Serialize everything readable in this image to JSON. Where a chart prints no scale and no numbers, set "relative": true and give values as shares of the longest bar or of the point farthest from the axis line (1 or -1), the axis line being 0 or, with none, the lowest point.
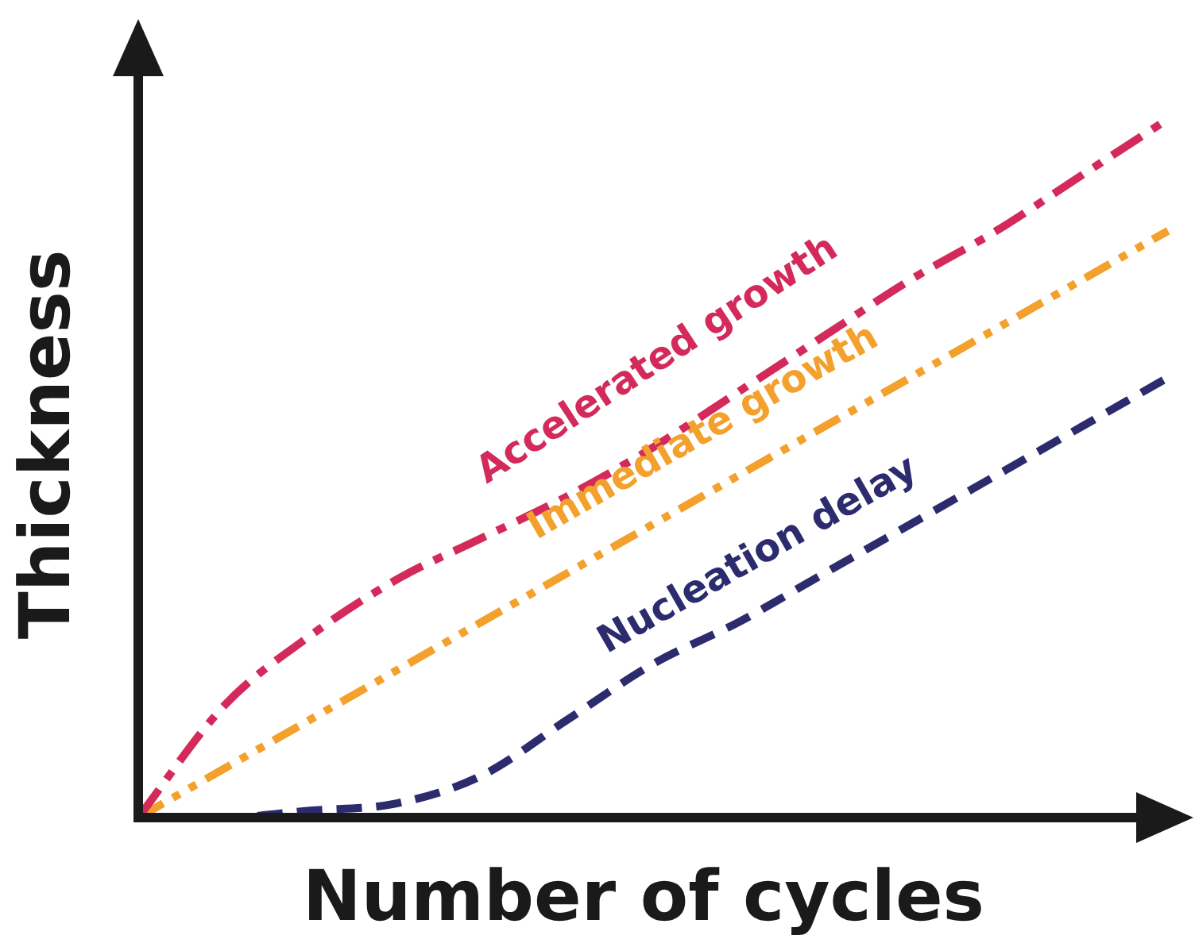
{
  "chart_data": {
    "type": "line",
    "relative": true,
    "xlabel": "Number of cycles",
    "ylabel": "Thickness",
    "categories": [
      null,
      null,
      null,
      null,
      null,
      null,
      null,
      null,
      null,
      null,
      null,
      null,
      null
    ],
    "marker": "none",
    "legend": false,
    "series": [
      {
        "name": "Accelerated growth",
        "color": "#d42a5b",
        "line_style": "dashdot",
        "values": [
          0,
          0.16,
          0.26,
          0.34,
          0.4,
          0.46,
          0.53,
          0.61,
          0.69,
          0.77,
          0.84,
          0.92,
          1
        ]
      },
      {
        "name": "Immediate growth",
        "color": "#f3a02c",
        "line_style": "dashdotdot",
        "values": [
          0,
          0.07,
          0.14,
          0.21,
          0.28,
          0.35,
          0.42,
          0.49,
          0.56,
          0.63,
          0.7,
          0.77,
          0.84
        ]
      },
      {
        "name": "Nucleation delay",
        "color": "#2b2b6e",
        "line_style": "dashed",
        "values": [
          0,
          0,
          0.01,
          0.02,
          0.06,
          0.14,
          0.22,
          0.28,
          0.35,
          0.42,
          0.49,
          0.56,
          0.63
        ]
      }
    ]
  }
}
